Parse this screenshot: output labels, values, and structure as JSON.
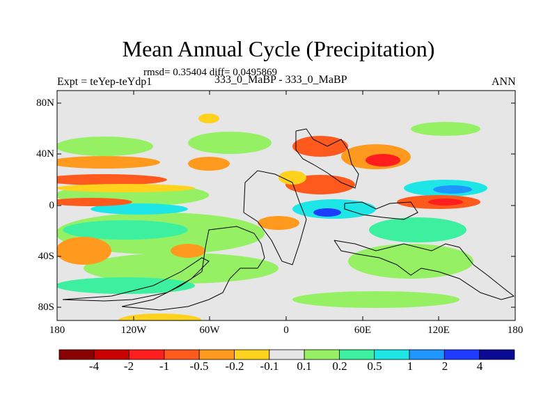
{
  "header": {
    "title": "Mean Annual Cycle (Precipitation)",
    "stats": "rmsd= 0.35404 diff= 0.0495869",
    "experiment": "Expt = teYep-teYdp1",
    "comparison": "333_0_MaBP - 333_0_MaBP",
    "season": "ANN"
  },
  "axes": {
    "y_ticks": [
      "80N",
      "40N",
      "0",
      "40S",
      "80S"
    ],
    "x_ticks": [
      "180",
      "120W",
      "60W",
      "0",
      "60E",
      "120E",
      "180"
    ]
  },
  "colorbar": {
    "labels": [
      "-4",
      "-2",
      "-1",
      "-0.5",
      "-0.2",
      "-0.1",
      "0.1",
      "0.2",
      "0.5",
      "1",
      "2",
      "4"
    ],
    "colors": [
      "#8b0000",
      "#c80000",
      "#ff1e1e",
      "#ff5a1e",
      "#ff9a1e",
      "#ffd21e",
      "#e6e6e6",
      "#96f064",
      "#3cf0a0",
      "#1ee6e6",
      "#1e96ff",
      "#1e3cff",
      "#0a0a96"
    ]
  },
  "map": {
    "background_color": "#e6e6e6"
  }
}
